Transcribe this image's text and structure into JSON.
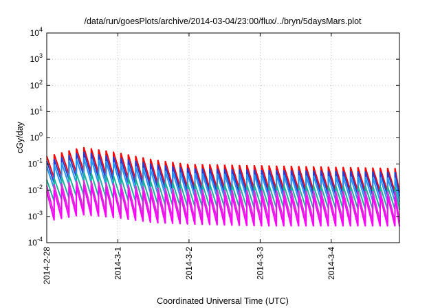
{
  "chart_data": {
    "type": "line",
    "title": "/data/run/goesPlots/archive/2014-03-04/23:00/flux/../bryn/5daysMars.plot",
    "xlabel": "Coordinated Universal Time (UTC)",
    "ylabel": "cGy/day",
    "y_scale": "log",
    "ylim": [
      0.0001,
      10000
    ],
    "xlim": [
      "2014-02-28T00:00",
      "2014-03-04T23:00"
    ],
    "grid": true,
    "legend": "none",
    "x_ticks": [
      "2014-2-28",
      "2014-3-1",
      "2014-3-2",
      "2014-3-3",
      "2014-3-4"
    ],
    "y_ticks": [
      {
        "base": "10",
        "exp": "-4"
      },
      {
        "base": "10",
        "exp": "-3"
      },
      {
        "base": "10",
        "exp": "-2"
      },
      {
        "base": "10",
        "exp": "-1"
      },
      {
        "base": "10",
        "exp": "0"
      },
      {
        "base": "10",
        "exp": "1"
      },
      {
        "base": "10",
        "exp": "2"
      },
      {
        "base": "10",
        "exp": "3"
      },
      {
        "base": "10",
        "exp": "4"
      }
    ],
    "period_hours": 2.5,
    "series": [
      {
        "color": "#ff0000",
        "peaks": [
          [
            0,
            0.2
          ],
          [
            12,
            0.45
          ],
          [
            24,
            0.28
          ],
          [
            36,
            0.15
          ],
          [
            48,
            0.1
          ],
          [
            72,
            0.09
          ],
          [
            119,
            0.07
          ]
        ],
        "ratio": 0.12
      },
      {
        "color": "#1f3fd8",
        "peaks": [
          [
            0,
            0.13
          ],
          [
            12,
            0.3
          ],
          [
            24,
            0.18
          ],
          [
            36,
            0.1
          ],
          [
            48,
            0.07
          ],
          [
            72,
            0.06
          ],
          [
            119,
            0.05
          ]
        ],
        "ratio": 0.12
      },
      {
        "color": "#2196f3",
        "peaks": [
          [
            0,
            0.08
          ],
          [
            12,
            0.18
          ],
          [
            24,
            0.11
          ],
          [
            36,
            0.06
          ],
          [
            48,
            0.045
          ],
          [
            72,
            0.04
          ],
          [
            119,
            0.03
          ]
        ],
        "ratio": 0.12
      },
      {
        "color": "#19b39b",
        "peaks": [
          [
            0,
            0.025
          ],
          [
            12,
            0.05
          ],
          [
            24,
            0.035
          ],
          [
            36,
            0.022
          ],
          [
            48,
            0.018
          ],
          [
            72,
            0.016
          ],
          [
            119,
            0.014
          ]
        ],
        "ratio": 0.13
      },
      {
        "color": "#d633d6",
        "peaks": [
          [
            0,
            0.015
          ],
          [
            12,
            0.025
          ],
          [
            24,
            0.018
          ],
          [
            36,
            0.013
          ],
          [
            48,
            0.011
          ],
          [
            72,
            0.01
          ],
          [
            119,
            0.009
          ]
        ],
        "ratio": 0.07
      },
      {
        "color": "#ff00ff",
        "peaks": [
          [
            0,
            0.009
          ],
          [
            12,
            0.016
          ],
          [
            24,
            0.012
          ],
          [
            36,
            0.008
          ],
          [
            48,
            0.007
          ],
          [
            72,
            0.006
          ],
          [
            119,
            0.006
          ]
        ],
        "ratio": 0.07
      }
    ]
  }
}
